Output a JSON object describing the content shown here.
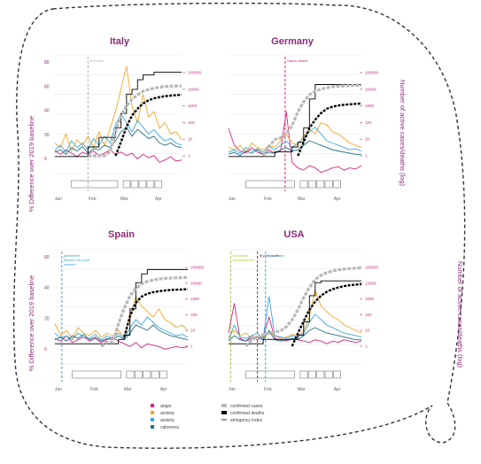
{
  "colors": {
    "anger": "#d6267e",
    "anxiety": "#f5a623",
    "anxiety2": "#3aa6dc",
    "calmness": "#1f6f86",
    "cases": "#b8b8b8",
    "deaths": "#000000",
    "stringency": "#000000",
    "title": "#8a2a7a",
    "blob": "#333333"
  },
  "axis_labels": {
    "left": "% Difference over 2019 baseline",
    "right": "Number of active cases/deaths (log)"
  },
  "legend": {
    "left": [
      {
        "label": "anger",
        "color_key": "anger"
      },
      {
        "label": "anxiety",
        "color_key": "anxiety"
      },
      {
        "label": "anxiety",
        "color_key": "anxiety2"
      },
      {
        "label": "calmness",
        "color_key": "calmness"
      }
    ],
    "right": [
      {
        "label": "confirmed cases",
        "style": "cases"
      },
      {
        "label": "confirmed deaths",
        "style": "deaths"
      },
      {
        "label": "stringency index",
        "style": "stringency"
      }
    ]
  },
  "chart_data": [
    {
      "type": "line",
      "title": "Italy",
      "xticks": [
        "Jan",
        "Feb",
        "Mar",
        "Apr"
      ],
      "yticks": [
        "80",
        "60",
        "40",
        "20",
        "0"
      ],
      "ylim": [
        -15,
        90
      ],
      "right_ticks": [
        "100000",
        "10000",
        "1000",
        "100",
        "10",
        "1"
      ],
      "right_scale": "log",
      "events": [
        {
          "label": "first case",
          "date": "Jan 31",
          "color": "#b0b0b0"
        }
      ],
      "x": [
        0,
        5,
        10,
        15,
        20,
        25,
        30,
        35,
        40,
        45,
        50,
        55,
        60,
        65,
        70,
        75,
        80,
        85,
        90,
        95,
        100,
        105,
        110,
        115
      ],
      "series": [
        {
          "name": "anger",
          "color_key": "anger",
          "values": [
            5,
            2,
            6,
            3,
            0,
            4,
            2,
            5,
            1,
            3,
            6,
            2,
            4,
            1,
            3,
            -2,
            2,
            -1,
            1,
            -5,
            -3,
            0,
            -4,
            -3
          ]
        },
        {
          "name": "anxiety",
          "color_key": "anxiety",
          "values": [
            12,
            8,
            20,
            5,
            15,
            10,
            18,
            8,
            22,
            10,
            25,
            40,
            60,
            80,
            45,
            30,
            55,
            35,
            40,
            25,
            30,
            20,
            22,
            15
          ]
        },
        {
          "name": "anxiety",
          "color_key": "anxiety2",
          "values": [
            6,
            10,
            4,
            14,
            8,
            12,
            6,
            16,
            10,
            18,
            12,
            28,
            38,
            30,
            22,
            32,
            26,
            20,
            24,
            18,
            14,
            16,
            12,
            10
          ]
        },
        {
          "name": "calmness",
          "color_key": "calmness",
          "values": [
            4,
            6,
            2,
            8,
            5,
            9,
            3,
            7,
            6,
            10,
            8,
            14,
            22,
            26,
            18,
            24,
            20,
            16,
            18,
            12,
            10,
            12,
            9,
            8
          ]
        }
      ],
      "cases": [
        null,
        null,
        null,
        null,
        null,
        null,
        0,
        0,
        1,
        1,
        2,
        50,
        800,
        4000,
        12000,
        25000,
        45000,
        60000,
        75000,
        90000,
        100000,
        105000,
        108000,
        110000
      ],
      "deaths": [
        null,
        null,
        null,
        null,
        null,
        null,
        null,
        null,
        null,
        null,
        null,
        1,
        10,
        120,
        800,
        2500,
        6000,
        10000,
        14000,
        17000,
        20000,
        22000,
        24000,
        25000
      ],
      "stringency": [
        0,
        0,
        0,
        0,
        0,
        0,
        10,
        10,
        20,
        20,
        20,
        30,
        45,
        65,
        70,
        80,
        85,
        85,
        88,
        88,
        88,
        88,
        88,
        88
      ]
    },
    {
      "type": "line",
      "title": "Germany",
      "xticks": [
        "Jan",
        "Feb",
        "Mar",
        "Apr"
      ],
      "yticks": [],
      "ylim": [
        -15,
        90
      ],
      "right_ticks": [
        "100000",
        "10000",
        "1000",
        "100",
        "10",
        "1"
      ],
      "right_scale": "log",
      "events": [
        {
          "label": "Hanau attack",
          "date": "Feb 19",
          "color": "#d6267e"
        }
      ],
      "x": [
        0,
        5,
        10,
        15,
        20,
        25,
        30,
        35,
        40,
        45,
        50,
        55,
        60,
        65,
        70,
        75,
        80,
        85,
        90,
        95,
        100,
        105,
        110,
        115
      ],
      "series": [
        {
          "name": "anger",
          "color_key": "anger",
          "values": [
            25,
            10,
            5,
            3,
            8,
            4,
            2,
            6,
            3,
            5,
            40,
            -5,
            -10,
            -12,
            -8,
            -10,
            -14,
            -12,
            -10,
            -9,
            -12,
            -10,
            -11,
            -8
          ]
        },
        {
          "name": "anxiety",
          "color_key": "anxiety",
          "values": [
            8,
            6,
            10,
            4,
            12,
            8,
            6,
            10,
            8,
            14,
            20,
            12,
            10,
            18,
            24,
            20,
            30,
            28,
            22,
            20,
            16,
            12,
            10,
            8
          ]
        },
        {
          "name": "anxiety",
          "color_key": "anxiety2",
          "values": [
            4,
            6,
            3,
            8,
            5,
            7,
            4,
            9,
            6,
            10,
            14,
            8,
            12,
            16,
            22,
            26,
            20,
            14,
            12,
            10,
            8,
            6,
            7,
            5
          ]
        },
        {
          "name": "calmness",
          "color_key": "calmness",
          "values": [
            2,
            4,
            1,
            5,
            3,
            6,
            2,
            4,
            3,
            6,
            8,
            5,
            6,
            10,
            14,
            12,
            10,
            8,
            6,
            5,
            4,
            3,
            2,
            2
          ]
        }
      ],
      "cases": [
        null,
        null,
        null,
        null,
        null,
        null,
        0,
        5,
        15,
        20,
        40,
        150,
        1500,
        8000,
        25000,
        45000,
        65000,
        80000,
        95000,
        105000,
        110000,
        115000,
        118000,
        120000
      ],
      "deaths": [
        null,
        null,
        null,
        null,
        null,
        null,
        null,
        null,
        null,
        null,
        null,
        null,
        1,
        10,
        100,
        400,
        1200,
        2500,
        3500,
        4200,
        4800,
        5200,
        5600,
        6000
      ],
      "stringency": [
        0,
        0,
        0,
        0,
        0,
        0,
        0,
        0,
        5,
        5,
        5,
        10,
        15,
        30,
        60,
        75,
        75,
        75,
        75,
        75,
        75,
        75,
        75,
        75
      ]
    },
    {
      "type": "line",
      "title": "Spain",
      "xticks": [
        "Jan",
        "Feb",
        "Mar",
        "Apr"
      ],
      "yticks": [
        "60",
        "40",
        "20",
        "0"
      ],
      "ylim": [
        -15,
        70
      ],
      "right_ticks": [
        "100000",
        "10000",
        "1000",
        "100",
        "10",
        "1"
      ],
      "right_scale": "log",
      "events": [
        {
          "label": "parliament election of prime minister",
          "date": "Jan 7",
          "color": "#3aa6dc"
        }
      ],
      "x": [
        0,
        5,
        10,
        15,
        20,
        25,
        30,
        35,
        40,
        45,
        50,
        55,
        60,
        65,
        70,
        75,
        80,
        85,
        90,
        95,
        100,
        105,
        110,
        115
      ],
      "series": [
        {
          "name": "anger",
          "color_key": "anger",
          "values": [
            4,
            2,
            6,
            1,
            3,
            5,
            2,
            4,
            1,
            3,
            5,
            2,
            0,
            -2,
            1,
            -3,
            0,
            -1,
            -2,
            -4,
            -3,
            -2,
            -3,
            -2
          ]
        },
        {
          "name": "anxiety",
          "color_key": "anxiety",
          "values": [
            15,
            6,
            10,
            4,
            12,
            8,
            6,
            10,
            5,
            8,
            6,
            10,
            5,
            20,
            35,
            28,
            24,
            20,
            26,
            18,
            16,
            12,
            14,
            10
          ]
        },
        {
          "name": "anxiety",
          "color_key": "anxiety2",
          "values": [
            8,
            4,
            6,
            3,
            8,
            5,
            4,
            7,
            3,
            6,
            4,
            8,
            4,
            12,
            18,
            14,
            20,
            16,
            12,
            10,
            8,
            6,
            7,
            5
          ]
        },
        {
          "name": "calmness",
          "color_key": "calmness",
          "values": [
            3,
            5,
            2,
            6,
            4,
            7,
            3,
            5,
            2,
            4,
            3,
            6,
            3,
            8,
            14,
            12,
            10,
            14,
            10,
            8,
            6,
            5,
            4,
            3
          ]
        }
      ],
      "cases": [
        null,
        null,
        null,
        null,
        null,
        null,
        null,
        null,
        1,
        2,
        2,
        50,
        800,
        7000,
        25000,
        55000,
        85000,
        110000,
        130000,
        145000,
        155000,
        160000,
        165000,
        170000
      ],
      "deaths": [
        null,
        null,
        null,
        null,
        null,
        null,
        null,
        null,
        null,
        null,
        null,
        null,
        5,
        200,
        2000,
        6000,
        10000,
        13000,
        15500,
        17500,
        19000,
        20000,
        21000,
        22000
      ],
      "stringency": [
        0,
        0,
        0,
        0,
        0,
        0,
        0,
        0,
        0,
        0,
        0,
        5,
        10,
        40,
        70,
        80,
        85,
        85,
        85,
        85,
        85,
        85,
        85,
        85
      ]
    },
    {
      "type": "line",
      "title": "USA",
      "xticks": [
        "Jan",
        "Feb",
        "Mar",
        "Apr"
      ],
      "yticks": [],
      "ylim": [
        -15,
        70
      ],
      "right_ticks": [
        "100000",
        "10000",
        "1000",
        "100",
        "10",
        "1"
      ],
      "right_scale": "log",
      "events": [
        {
          "label": "Soleimani assassination",
          "date": "Jan 3",
          "color": "#b5c92e"
        },
        {
          "label": "Bryant death",
          "date": "Jan 26",
          "color": "#8a2a7a"
        },
        {
          "label": "Superbowl",
          "date": "Feb 2",
          "color": "#3aa6dc"
        }
      ],
      "x": [
        0,
        5,
        10,
        15,
        20,
        25,
        30,
        35,
        40,
        45,
        50,
        55,
        60,
        65,
        70,
        75,
        80,
        85,
        90,
        95,
        100,
        105,
        110,
        115
      ],
      "series": [
        {
          "name": "anger",
          "color_key": "anger",
          "values": [
            8,
            30,
            4,
            2,
            6,
            3,
            5,
            20,
            4,
            3,
            2,
            4,
            3,
            2,
            1,
            3,
            2,
            0,
            2,
            1,
            3,
            2,
            1,
            2
          ]
        },
        {
          "name": "anxiety",
          "color_key": "anxiety",
          "values": [
            5,
            10,
            6,
            8,
            4,
            6,
            5,
            8,
            6,
            4,
            5,
            7,
            6,
            10,
            20,
            40,
            28,
            24,
            20,
            18,
            14,
            12,
            10,
            8
          ]
        },
        {
          "name": "anxiety",
          "color_key": "anxiety2",
          "values": [
            3,
            14,
            5,
            4,
            6,
            8,
            4,
            35,
            6,
            5,
            4,
            6,
            5,
            8,
            16,
            22,
            18,
            14,
            12,
            10,
            8,
            7,
            6,
            5
          ]
        },
        {
          "name": "calmness",
          "color_key": "calmness",
          "values": [
            2,
            6,
            3,
            2,
            4,
            5,
            3,
            10,
            3,
            2,
            3,
            4,
            3,
            6,
            10,
            12,
            10,
            8,
            7,
            6,
            5,
            4,
            3,
            3
          ]
        }
      ],
      "cases": [
        null,
        null,
        null,
        1,
        3,
        5,
        8,
        10,
        12,
        15,
        30,
        100,
        600,
        5000,
        30000,
        120000,
        250000,
        400000,
        550000,
        650000,
        750000,
        820000,
        880000,
        930000
      ],
      "deaths": [
        null,
        null,
        null,
        null,
        null,
        null,
        null,
        null,
        null,
        null,
        null,
        1,
        10,
        80,
        600,
        2500,
        7000,
        14000,
        22000,
        30000,
        38000,
        44000,
        49000,
        52000
      ],
      "stringency": [
        0,
        0,
        0,
        0,
        0,
        0,
        5,
        5,
        5,
        5,
        5,
        5,
        10,
        25,
        55,
        70,
        72,
        72,
        72,
        72,
        72,
        72,
        72,
        72
      ]
    }
  ]
}
